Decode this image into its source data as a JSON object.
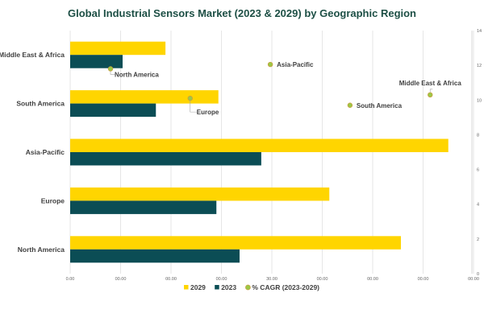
{
  "chart_data": {
    "type": "bar",
    "title": "Global Industrial Sensors Market (2023 & 2029) by Geographic Region",
    "orientation": "horizontal",
    "categories": [
      "North America",
      "Europe",
      "Asia-Pacific",
      "South America",
      "Middle East & Africa"
    ],
    "series": [
      {
        "name": "2029",
        "type": "bar",
        "color": "#FFD500",
        "values": [
          6.56,
          5.14,
          7.5,
          2.94,
          1.89
        ]
      },
      {
        "name": "2023",
        "type": "bar",
        "color": "#0B4D55",
        "values": [
          3.36,
          2.9,
          3.79,
          1.7,
          1.04
        ]
      },
      {
        "name": "% CAGR (2023-2029)",
        "type": "scatter",
        "color": "#9BC947",
        "points": [
          {
            "label": "North America",
            "x": 0.8,
            "y": 11.8
          },
          {
            "label": "Europe",
            "x": 2.38,
            "y": 10.1
          },
          {
            "label": "Asia-Pacific",
            "x": 3.97,
            "y": 12.05
          },
          {
            "label": "South America",
            "x": 5.55,
            "y": 9.7
          },
          {
            "label": "Middle East & Africa",
            "x": 7.14,
            "y": 10.3
          }
        ]
      }
    ],
    "xlim": [
      0,
      8
    ],
    "x_tick_labels": [
      "0.00",
      "00.00",
      "00.00",
      "00.00",
      "30.00",
      "00.00",
      "00.00",
      "00.00",
      "00.00"
    ],
    "y2lim": [
      0,
      14
    ],
    "y2_ticks": [
      "0",
      "2",
      "4",
      "6",
      "8",
      "10",
      "12",
      "14"
    ],
    "grid": "vertical",
    "legend_position": "bottom",
    "legend": [
      "2029",
      "2023",
      "% CAGR (2023-2029)"
    ]
  }
}
